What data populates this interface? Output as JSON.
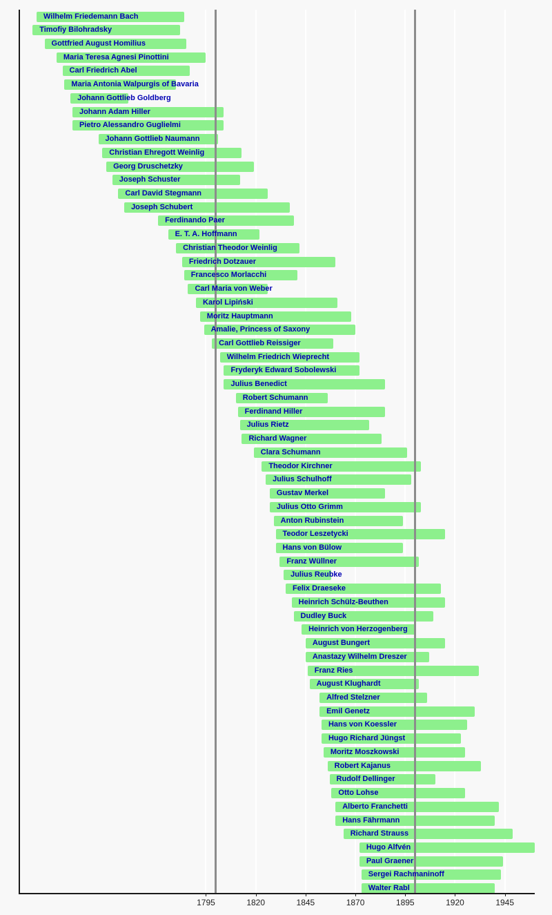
{
  "chart_data": {
    "type": "bar",
    "subtype": "horizontal-lifespan-timeline",
    "title": "",
    "xlabel": "",
    "ylabel": "",
    "xlim": [
      1701,
      1960
    ],
    "x_ticks": [
      1795,
      1820,
      1845,
      1870,
      1895,
      1920,
      1945
    ],
    "century_gridlines": [
      1800,
      1900
    ],
    "grid": "on",
    "legend": "none",
    "composers": [
      {
        "name": "Wilhelm Friedemann Bach",
        "start": 1710,
        "end": 1784
      },
      {
        "name": "Timofiy Bilohradsky",
        "start": 1708,
        "end": 1782
      },
      {
        "name": "Gottfried August Homilius",
        "start": 1714,
        "end": 1785
      },
      {
        "name": "Maria Teresa Agnesi Pinottini",
        "start": 1720,
        "end": 1795
      },
      {
        "name": "Carl Friedrich Abel",
        "start": 1723,
        "end": 1787
      },
      {
        "name": "Maria Antonia Walpurgis of Bavaria",
        "start": 1724,
        "end": 1780
      },
      {
        "name": "Johann Gottlieb Goldberg",
        "start": 1727,
        "end": 1756
      },
      {
        "name": "Johann Adam Hiller",
        "start": 1728,
        "end": 1804
      },
      {
        "name": "Pietro Alessandro Guglielmi",
        "start": 1728,
        "end": 1804
      },
      {
        "name": "Johann Gottlieb Naumann",
        "start": 1741,
        "end": 1801
      },
      {
        "name": "Christian Ehregott Weinlig",
        "start": 1743,
        "end": 1813
      },
      {
        "name": "Georg Druschetzky",
        "start": 1745,
        "end": 1819
      },
      {
        "name": "Joseph Schuster",
        "start": 1748,
        "end": 1812
      },
      {
        "name": "Carl David Stegmann",
        "start": 1751,
        "end": 1826
      },
      {
        "name": "Joseph Schubert",
        "start": 1754,
        "end": 1837
      },
      {
        "name": "Ferdinando Paer",
        "start": 1771,
        "end": 1839
      },
      {
        "name": "E. T. A. Hoffmann",
        "start": 1776,
        "end": 1822
      },
      {
        "name": "Christian Theodor Weinlig",
        "start": 1780,
        "end": 1842
      },
      {
        "name": "Friedrich Dotzauer",
        "start": 1783,
        "end": 1860
      },
      {
        "name": "Francesco Morlacchi",
        "start": 1784,
        "end": 1841
      },
      {
        "name": "Carl Maria von Weber",
        "start": 1786,
        "end": 1826
      },
      {
        "name": "Karol Lipiński",
        "start": 1790,
        "end": 1861
      },
      {
        "name": "Moritz Hauptmann",
        "start": 1792,
        "end": 1868
      },
      {
        "name": "Amalie, Princess of Saxony",
        "start": 1794,
        "end": 1870
      },
      {
        "name": "Carl Gottlieb Reissiger",
        "start": 1798,
        "end": 1859
      },
      {
        "name": "Wilhelm Friedrich Wieprecht",
        "start": 1802,
        "end": 1872
      },
      {
        "name": "Fryderyk Edward Sobolewski",
        "start": 1804,
        "end": 1872
      },
      {
        "name": "Julius Benedict",
        "start": 1804,
        "end": 1885
      },
      {
        "name": "Robert Schumann",
        "start": 1810,
        "end": 1856
      },
      {
        "name": "Ferdinand Hiller",
        "start": 1811,
        "end": 1885
      },
      {
        "name": "Julius Rietz",
        "start": 1812,
        "end": 1877
      },
      {
        "name": "Richard Wagner",
        "start": 1813,
        "end": 1883
      },
      {
        "name": "Clara Schumann",
        "start": 1819,
        "end": 1896
      },
      {
        "name": "Theodor Kirchner",
        "start": 1823,
        "end": 1903
      },
      {
        "name": "Julius Schulhoff",
        "start": 1825,
        "end": 1898
      },
      {
        "name": "Gustav Merkel",
        "start": 1827,
        "end": 1885
      },
      {
        "name": "Julius Otto Grimm",
        "start": 1827,
        "end": 1903
      },
      {
        "name": "Anton Rubinstein",
        "start": 1829,
        "end": 1894
      },
      {
        "name": "Teodor Leszetycki",
        "start": 1830,
        "end": 1915
      },
      {
        "name": "Hans von Bülow",
        "start": 1830,
        "end": 1894
      },
      {
        "name": "Franz Wüllner",
        "start": 1832,
        "end": 1902
      },
      {
        "name": "Julius Reubke",
        "start": 1834,
        "end": 1858
      },
      {
        "name": "Felix Draeseke",
        "start": 1835,
        "end": 1913
      },
      {
        "name": "Heinrich Schülz-Beuthen",
        "start": 1838,
        "end": 1915
      },
      {
        "name": "Dudley Buck",
        "start": 1839,
        "end": 1909
      },
      {
        "name": "Heinrich von Herzogenberg",
        "start": 1843,
        "end": 1900
      },
      {
        "name": "August Bungert",
        "start": 1845,
        "end": 1915
      },
      {
        "name": "Anastazy Wilhelm Dreszer",
        "start": 1845,
        "end": 1907
      },
      {
        "name": "Franz Ries",
        "start": 1846,
        "end": 1932
      },
      {
        "name": "August Klughardt",
        "start": 1847,
        "end": 1902
      },
      {
        "name": "Alfred Stelzner",
        "start": 1852,
        "end": 1906
      },
      {
        "name": "Emil Genetz",
        "start": 1852,
        "end": 1930
      },
      {
        "name": "Hans von Koessler",
        "start": 1853,
        "end": 1926
      },
      {
        "name": "Hugo Richard Jüngst",
        "start": 1853,
        "end": 1923
      },
      {
        "name": "Moritz Moszkowski",
        "start": 1854,
        "end": 1925
      },
      {
        "name": "Robert Kajanus",
        "start": 1856,
        "end": 1933
      },
      {
        "name": "Rudolf Dellinger",
        "start": 1857,
        "end": 1910
      },
      {
        "name": "Otto Lohse",
        "start": 1858,
        "end": 1925
      },
      {
        "name": "Alberto Franchetti",
        "start": 1860,
        "end": 1942
      },
      {
        "name": "Hans Fährmann",
        "start": 1860,
        "end": 1940
      },
      {
        "name": "Richard Strauss",
        "start": 1864,
        "end": 1949
      },
      {
        "name": "Hugo Alfvén",
        "start": 1872,
        "end": 1960
      },
      {
        "name": "Paul Graener",
        "start": 1872,
        "end": 1944
      },
      {
        "name": "Sergei Rachmaninoff",
        "start": 1873,
        "end": 1943
      },
      {
        "name": "Walter Rabl",
        "start": 1873,
        "end": 1940
      }
    ]
  },
  "colors": {
    "background": "#f8f8f8",
    "bar": "#8df08d",
    "bar_label": "#0000b3",
    "grid_light": "#ffffff",
    "grid_century": "#8c8c8c",
    "axis": "#1a1a1a",
    "tick_label": "#202020"
  }
}
